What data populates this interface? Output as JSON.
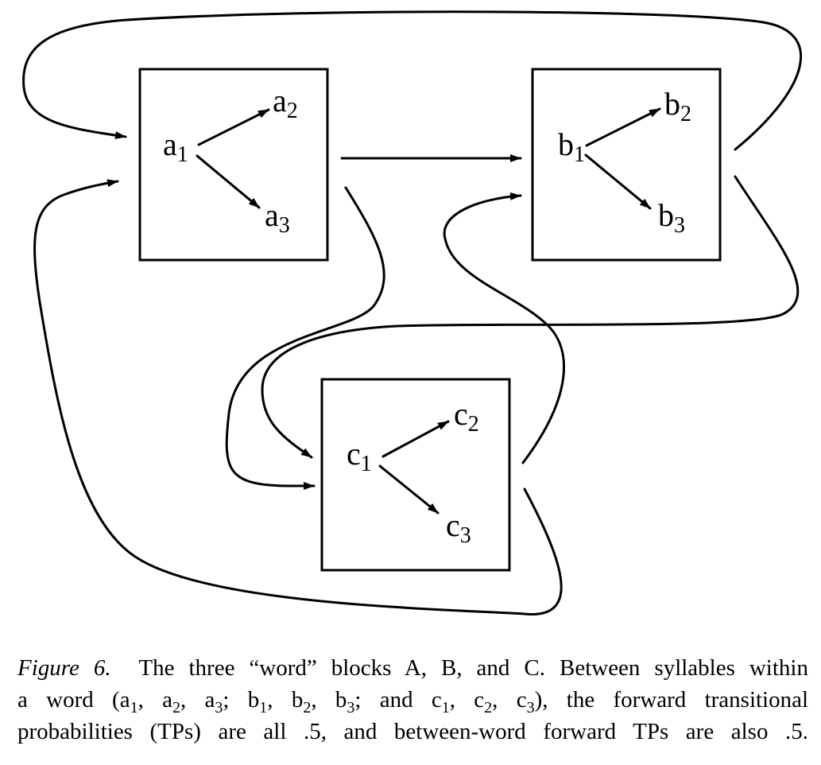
{
  "diagram": {
    "blocks": [
      {
        "id": "A",
        "syllables": [
          {
            "letter": "a",
            "index": "1"
          },
          {
            "letter": "a",
            "index": "2"
          },
          {
            "letter": "a",
            "index": "3"
          }
        ]
      },
      {
        "id": "B",
        "syllables": [
          {
            "letter": "b",
            "index": "1"
          },
          {
            "letter": "b",
            "index": "2"
          },
          {
            "letter": "b",
            "index": "3"
          }
        ]
      },
      {
        "id": "C",
        "syllables": [
          {
            "letter": "c",
            "index": "1"
          },
          {
            "letter": "c",
            "index": "2"
          },
          {
            "letter": "c",
            "index": "3"
          }
        ]
      }
    ],
    "stroke_color": "#000000"
  },
  "caption": {
    "label": "Figure 6.",
    "line1": "The three “word” blocks A, B, and C. Between syllables within",
    "line2_parts": [
      "a word (a",
      "1",
      ", a",
      "2",
      ", a",
      "3",
      "; b",
      "1",
      ", b",
      "2",
      ", b",
      "3",
      "; and c",
      "1",
      ", c",
      "2",
      ", c",
      "3",
      "), the forward transitional"
    ],
    "line3": "probabilities (TPs) are all .5, and between-word forward TPs are also .5."
  }
}
